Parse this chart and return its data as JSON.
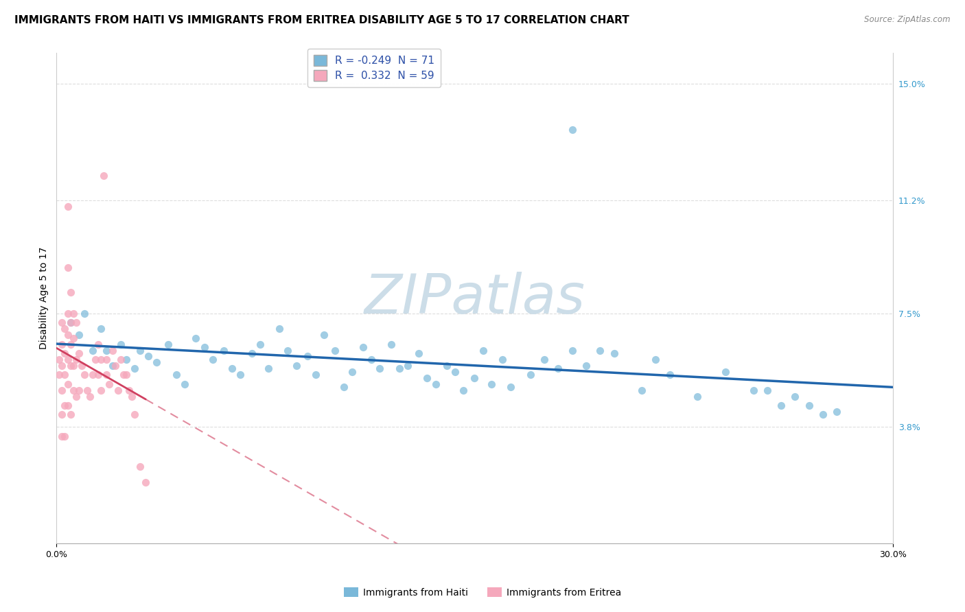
{
  "title": "IMMIGRANTS FROM HAITI VS IMMIGRANTS FROM ERITREA DISABILITY AGE 5 TO 17 CORRELATION CHART",
  "source": "Source: ZipAtlas.com",
  "ylabel": "Disability Age 5 to 17",
  "xlim": [
    0.0,
    0.3
  ],
  "ylim": [
    0.0,
    0.16
  ],
  "xtick_vals": [
    0.0,
    0.3
  ],
  "xtick_labels": [
    "0.0%",
    "30.0%"
  ],
  "ytick_vals": [
    0.038,
    0.075,
    0.112,
    0.15
  ],
  "ytick_labels": [
    "3.8%",
    "7.5%",
    "11.2%",
    "15.0%"
  ],
  "haiti_R": -0.249,
  "haiti_N": 71,
  "eritrea_R": 0.332,
  "eritrea_N": 59,
  "haiti_color": "#7ab8d9",
  "eritrea_color": "#f5a8bc",
  "haiti_line_color": "#2166ac",
  "eritrea_line_color": "#d04060",
  "watermark": "ZIPatlas",
  "watermark_color": "#ccdde8",
  "background_color": "#ffffff",
  "grid_color": "#dddddd",
  "title_fontsize": 11,
  "ylabel_fontsize": 10,
  "tick_fontsize": 9,
  "legend_fontsize": 11,
  "haiti_x": [
    0.005,
    0.008,
    0.01,
    0.013,
    0.016,
    0.018,
    0.02,
    0.023,
    0.025,
    0.028,
    0.03,
    0.033,
    0.036,
    0.04,
    0.043,
    0.046,
    0.05,
    0.053,
    0.056,
    0.06,
    0.063,
    0.066,
    0.07,
    0.073,
    0.076,
    0.08,
    0.083,
    0.086,
    0.09,
    0.093,
    0.096,
    0.1,
    0.103,
    0.106,
    0.11,
    0.113,
    0.116,
    0.12,
    0.123,
    0.126,
    0.13,
    0.133,
    0.136,
    0.14,
    0.143,
    0.146,
    0.15,
    0.153,
    0.156,
    0.16,
    0.163,
    0.17,
    0.175,
    0.18,
    0.185,
    0.19,
    0.195,
    0.2,
    0.21,
    0.215,
    0.22,
    0.23,
    0.24,
    0.25,
    0.255,
    0.26,
    0.265,
    0.27,
    0.275,
    0.28,
    0.185
  ],
  "haiti_y": [
    0.072,
    0.068,
    0.075,
    0.063,
    0.07,
    0.063,
    0.058,
    0.065,
    0.06,
    0.057,
    0.063,
    0.061,
    0.059,
    0.065,
    0.055,
    0.052,
    0.067,
    0.064,
    0.06,
    0.063,
    0.057,
    0.055,
    0.062,
    0.065,
    0.057,
    0.07,
    0.063,
    0.058,
    0.061,
    0.055,
    0.068,
    0.063,
    0.051,
    0.056,
    0.064,
    0.06,
    0.057,
    0.065,
    0.057,
    0.058,
    0.062,
    0.054,
    0.052,
    0.058,
    0.056,
    0.05,
    0.054,
    0.063,
    0.052,
    0.06,
    0.051,
    0.055,
    0.06,
    0.057,
    0.063,
    0.058,
    0.063,
    0.062,
    0.05,
    0.06,
    0.055,
    0.048,
    0.056,
    0.05,
    0.05,
    0.045,
    0.048,
    0.045,
    0.042,
    0.043,
    0.135
  ],
  "eritrea_x": [
    0.001,
    0.001,
    0.002,
    0.002,
    0.002,
    0.002,
    0.002,
    0.002,
    0.003,
    0.003,
    0.003,
    0.003,
    0.003,
    0.004,
    0.004,
    0.004,
    0.004,
    0.004,
    0.004,
    0.004,
    0.005,
    0.005,
    0.005,
    0.005,
    0.005,
    0.006,
    0.006,
    0.006,
    0.006,
    0.007,
    0.007,
    0.007,
    0.008,
    0.008,
    0.009,
    0.01,
    0.011,
    0.012,
    0.013,
    0.014,
    0.015,
    0.015,
    0.016,
    0.016,
    0.017,
    0.018,
    0.018,
    0.019,
    0.02,
    0.021,
    0.022,
    0.023,
    0.024,
    0.025,
    0.026,
    0.027,
    0.028,
    0.03,
    0.032
  ],
  "eritrea_y": [
    0.06,
    0.055,
    0.072,
    0.065,
    0.058,
    0.05,
    0.042,
    0.035,
    0.07,
    0.062,
    0.055,
    0.045,
    0.035,
    0.11,
    0.09,
    0.075,
    0.068,
    0.06,
    0.052,
    0.045,
    0.082,
    0.072,
    0.065,
    0.058,
    0.042,
    0.075,
    0.067,
    0.058,
    0.05,
    0.072,
    0.06,
    0.048,
    0.062,
    0.05,
    0.058,
    0.055,
    0.05,
    0.048,
    0.055,
    0.06,
    0.065,
    0.055,
    0.06,
    0.05,
    0.12,
    0.06,
    0.055,
    0.052,
    0.063,
    0.058,
    0.05,
    0.06,
    0.055,
    0.055,
    0.05,
    0.048,
    0.042,
    0.025,
    0.02
  ]
}
